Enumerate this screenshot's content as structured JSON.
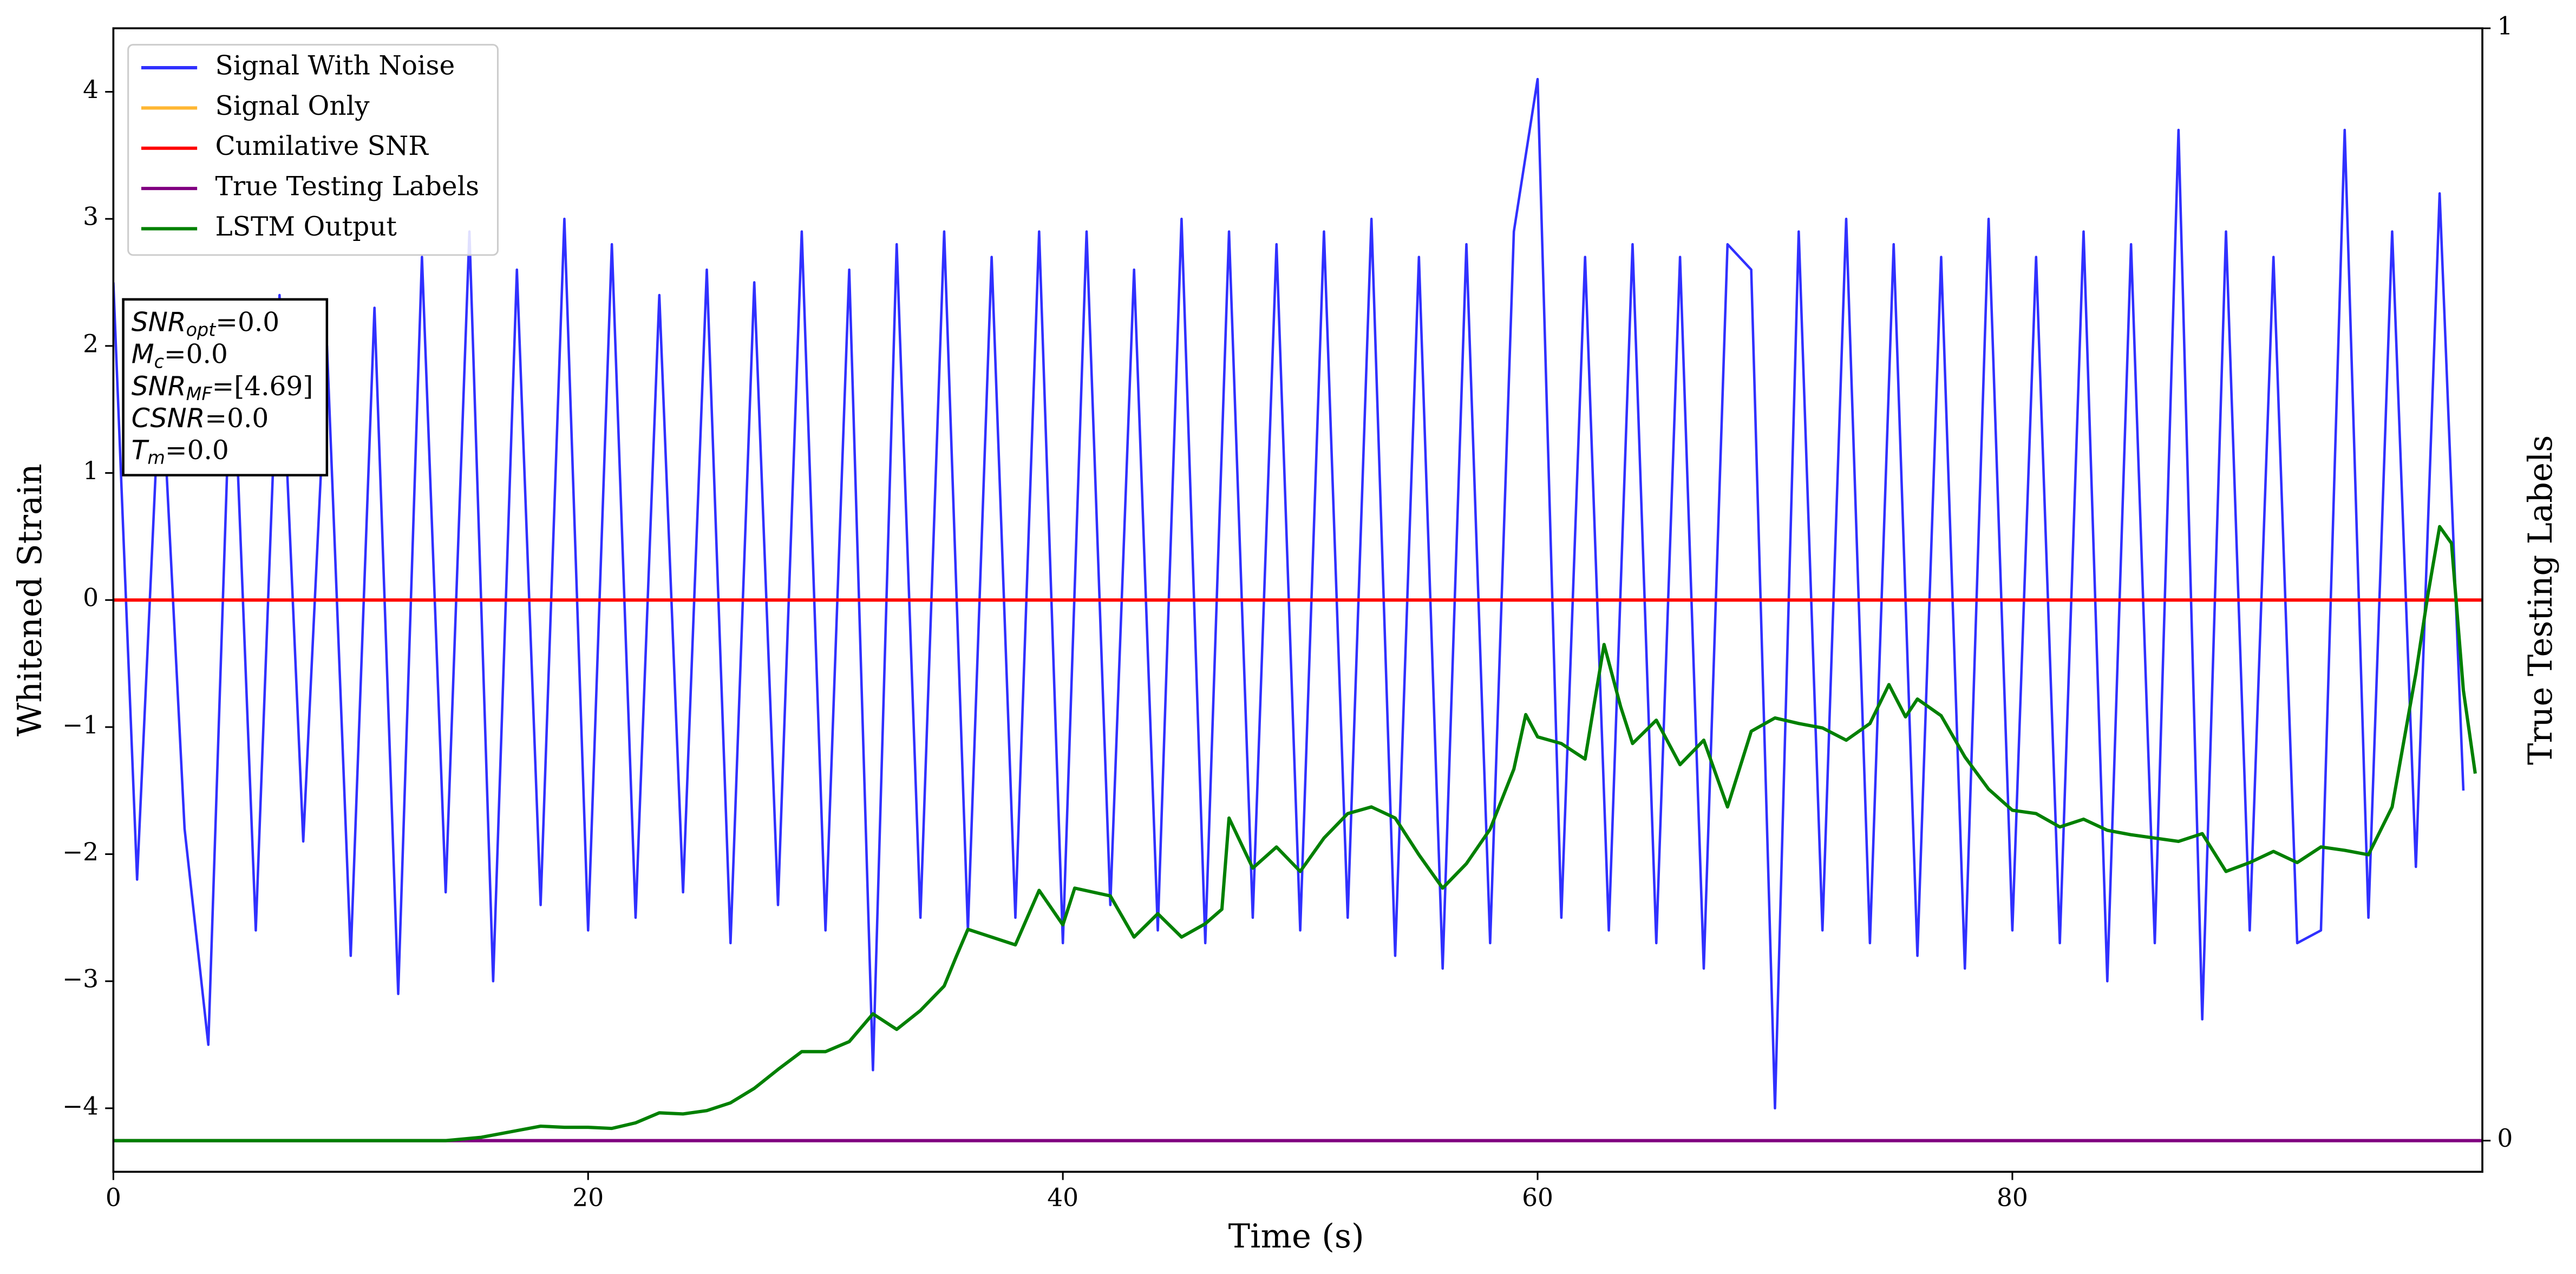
{
  "chart_data": {
    "type": "line",
    "xlabel": "Time (s)",
    "ylabel": "Whitened Strain",
    "y2label": "True Testing Labels",
    "xlim": [
      0,
      99.8
    ],
    "xticks": [
      0,
      20,
      40,
      60,
      80
    ],
    "ylim": [
      -4.5,
      4.5
    ],
    "yticks": [
      -4,
      -3,
      -2,
      -1,
      0,
      1,
      2,
      3,
      4
    ],
    "y2lim": [
      -0.028,
      1
    ],
    "y2ticks": [
      0,
      1
    ],
    "legend": "upper left",
    "series": [
      {
        "name": "Signal With Noise",
        "color": "#3030ff",
        "x": [
          0,
          1,
          2,
          3,
          4,
          5,
          6,
          7,
          8,
          9,
          10,
          11,
          12,
          13,
          14,
          15,
          16,
          17,
          18,
          19,
          20,
          21,
          22,
          23,
          24,
          25,
          26,
          27,
          28,
          29,
          30,
          31,
          32,
          33,
          34,
          35,
          36,
          37,
          38,
          39,
          40,
          41,
          42,
          43,
          44,
          45,
          46,
          47,
          48,
          49,
          50,
          51,
          52,
          53,
          54,
          55,
          56,
          57,
          58,
          59,
          60,
          61,
          62,
          63,
          64,
          65,
          66,
          67,
          68,
          69,
          70,
          71,
          72,
          73,
          74,
          75,
          76,
          77,
          78,
          79,
          80,
          81,
          82,
          83,
          84,
          85,
          86,
          87,
          88,
          89,
          90,
          91,
          92,
          93,
          94,
          95,
          96,
          97,
          98,
          99
        ],
        "values": [
          2.5,
          -2.2,
          1.9,
          -1.8,
          -3.5,
          2.2,
          -2.6,
          2.4,
          -1.9,
          2.0,
          -2.8,
          2.3,
          -3.1,
          2.7,
          -2.3,
          2.9,
          -3.0,
          2.6,
          -2.4,
          3.0,
          -2.6,
          2.8,
          -2.5,
          2.4,
          -2.3,
          2.6,
          -2.7,
          2.5,
          -2.4,
          2.9,
          -2.6,
          2.6,
          -3.7,
          2.8,
          -2.5,
          2.9,
          -2.6,
          2.7,
          -2.5,
          2.9,
          -2.7,
          2.9,
          -2.4,
          2.6,
          -2.6,
          3.0,
          -2.7,
          2.9,
          -2.5,
          2.8,
          -2.6,
          2.9,
          -2.5,
          3.0,
          -2.8,
          2.7,
          -2.9,
          2.8,
          -2.7,
          2.9,
          4.1,
          -2.5,
          2.7,
          -2.6,
          2.8,
          -2.7,
          2.7,
          -2.9,
          2.8,
          2.6,
          -4.0,
          2.9,
          -2.6,
          3.0,
          -2.7,
          2.8,
          -2.8,
          2.7,
          -2.9,
          3.0,
          -2.6,
          2.7,
          -2.7,
          2.9,
          -3.0,
          2.8,
          -2.7,
          3.7,
          -3.3,
          2.9,
          -2.6,
          2.7,
          -2.7,
          -2.6,
          3.7,
          -2.5,
          2.9,
          -2.1,
          3.2,
          -1.5
        ]
      },
      {
        "name": "Signal Only",
        "color": "#ffb733",
        "x": [
          0,
          99.8
        ],
        "values": [
          0,
          0
        ]
      },
      {
        "name": "Cumilative SNR",
        "color": "#ff0000",
        "x": [
          0,
          99.8
        ],
        "values": [
          0,
          0
        ]
      },
      {
        "name": "True Testing Labels",
        "color": "#800080",
        "axis": "y2",
        "x": [
          0,
          99.8
        ],
        "values": [
          0,
          0
        ]
      },
      {
        "name": "LSTM Output",
        "color": "#008000",
        "axis": "y2",
        "x": [
          0,
          14,
          15.5,
          17,
          18,
          19,
          20,
          21,
          22,
          23,
          24,
          25,
          26,
          27,
          28,
          29,
          30,
          31,
          32,
          33,
          34,
          35,
          35.5,
          36,
          37,
          38,
          39,
          40,
          40.5,
          42,
          43,
          44,
          45,
          46,
          46.7,
          47,
          48,
          49,
          50,
          51,
          52,
          53,
          54,
          55,
          56,
          57,
          58,
          59,
          59.5,
          60,
          61,
          62,
          62.8,
          63.5,
          64,
          65,
          66,
          67,
          68,
          69,
          70,
          71,
          72,
          73,
          74,
          74.8,
          75.5,
          76,
          77,
          78,
          79,
          80,
          81,
          82,
          83,
          84,
          85,
          86,
          87,
          88,
          89,
          90,
          91,
          92,
          93,
          94,
          95,
          96,
          97,
          97.5,
          98,
          98.5,
          99,
          99.5
        ],
        "values": [
          0,
          0,
          0.003,
          0.009,
          0.013,
          0.012,
          0.012,
          0.011,
          0.016,
          0.025,
          0.024,
          0.027,
          0.034,
          0.047,
          0.064,
          0.08,
          0.08,
          0.089,
          0.114,
          0.1,
          0.117,
          0.139,
          0.165,
          0.19,
          0.183,
          0.176,
          0.225,
          0.194,
          0.227,
          0.22,
          0.183,
          0.204,
          0.183,
          0.195,
          0.208,
          0.29,
          0.245,
          0.264,
          0.242,
          0.272,
          0.294,
          0.3,
          0.29,
          0.257,
          0.227,
          0.249,
          0.28,
          0.334,
          0.383,
          0.363,
          0.357,
          0.343,
          0.446,
          0.39,
          0.357,
          0.378,
          0.338,
          0.36,
          0.3,
          0.368,
          0.38,
          0.375,
          0.371,
          0.36,
          0.375,
          0.41,
          0.381,
          0.397,
          0.382,
          0.345,
          0.316,
          0.297,
          0.294,
          0.282,
          0.289,
          0.279,
          0.275,
          0.272,
          0.269,
          0.276,
          0.242,
          0.25,
          0.26,
          0.25,
          0.264,
          0.261,
          0.257,
          0.3,
          0.42,
          0.49,
          0.552,
          0.537,
          0.405,
          0.33
        ]
      }
    ],
    "annotation": [
      {
        "symbol": "SNR",
        "sub": "opt",
        "text": "=0.0"
      },
      {
        "symbol": "M",
        "sub": "c",
        "text": "=0.0"
      },
      {
        "symbol": "SNR",
        "sub": "MF",
        "text": "=[4.69]"
      },
      {
        "symbol": "CSNR",
        "text": "=0.0"
      },
      {
        "symbol": "T",
        "sub": "m",
        "text": "=0.0"
      }
    ]
  }
}
